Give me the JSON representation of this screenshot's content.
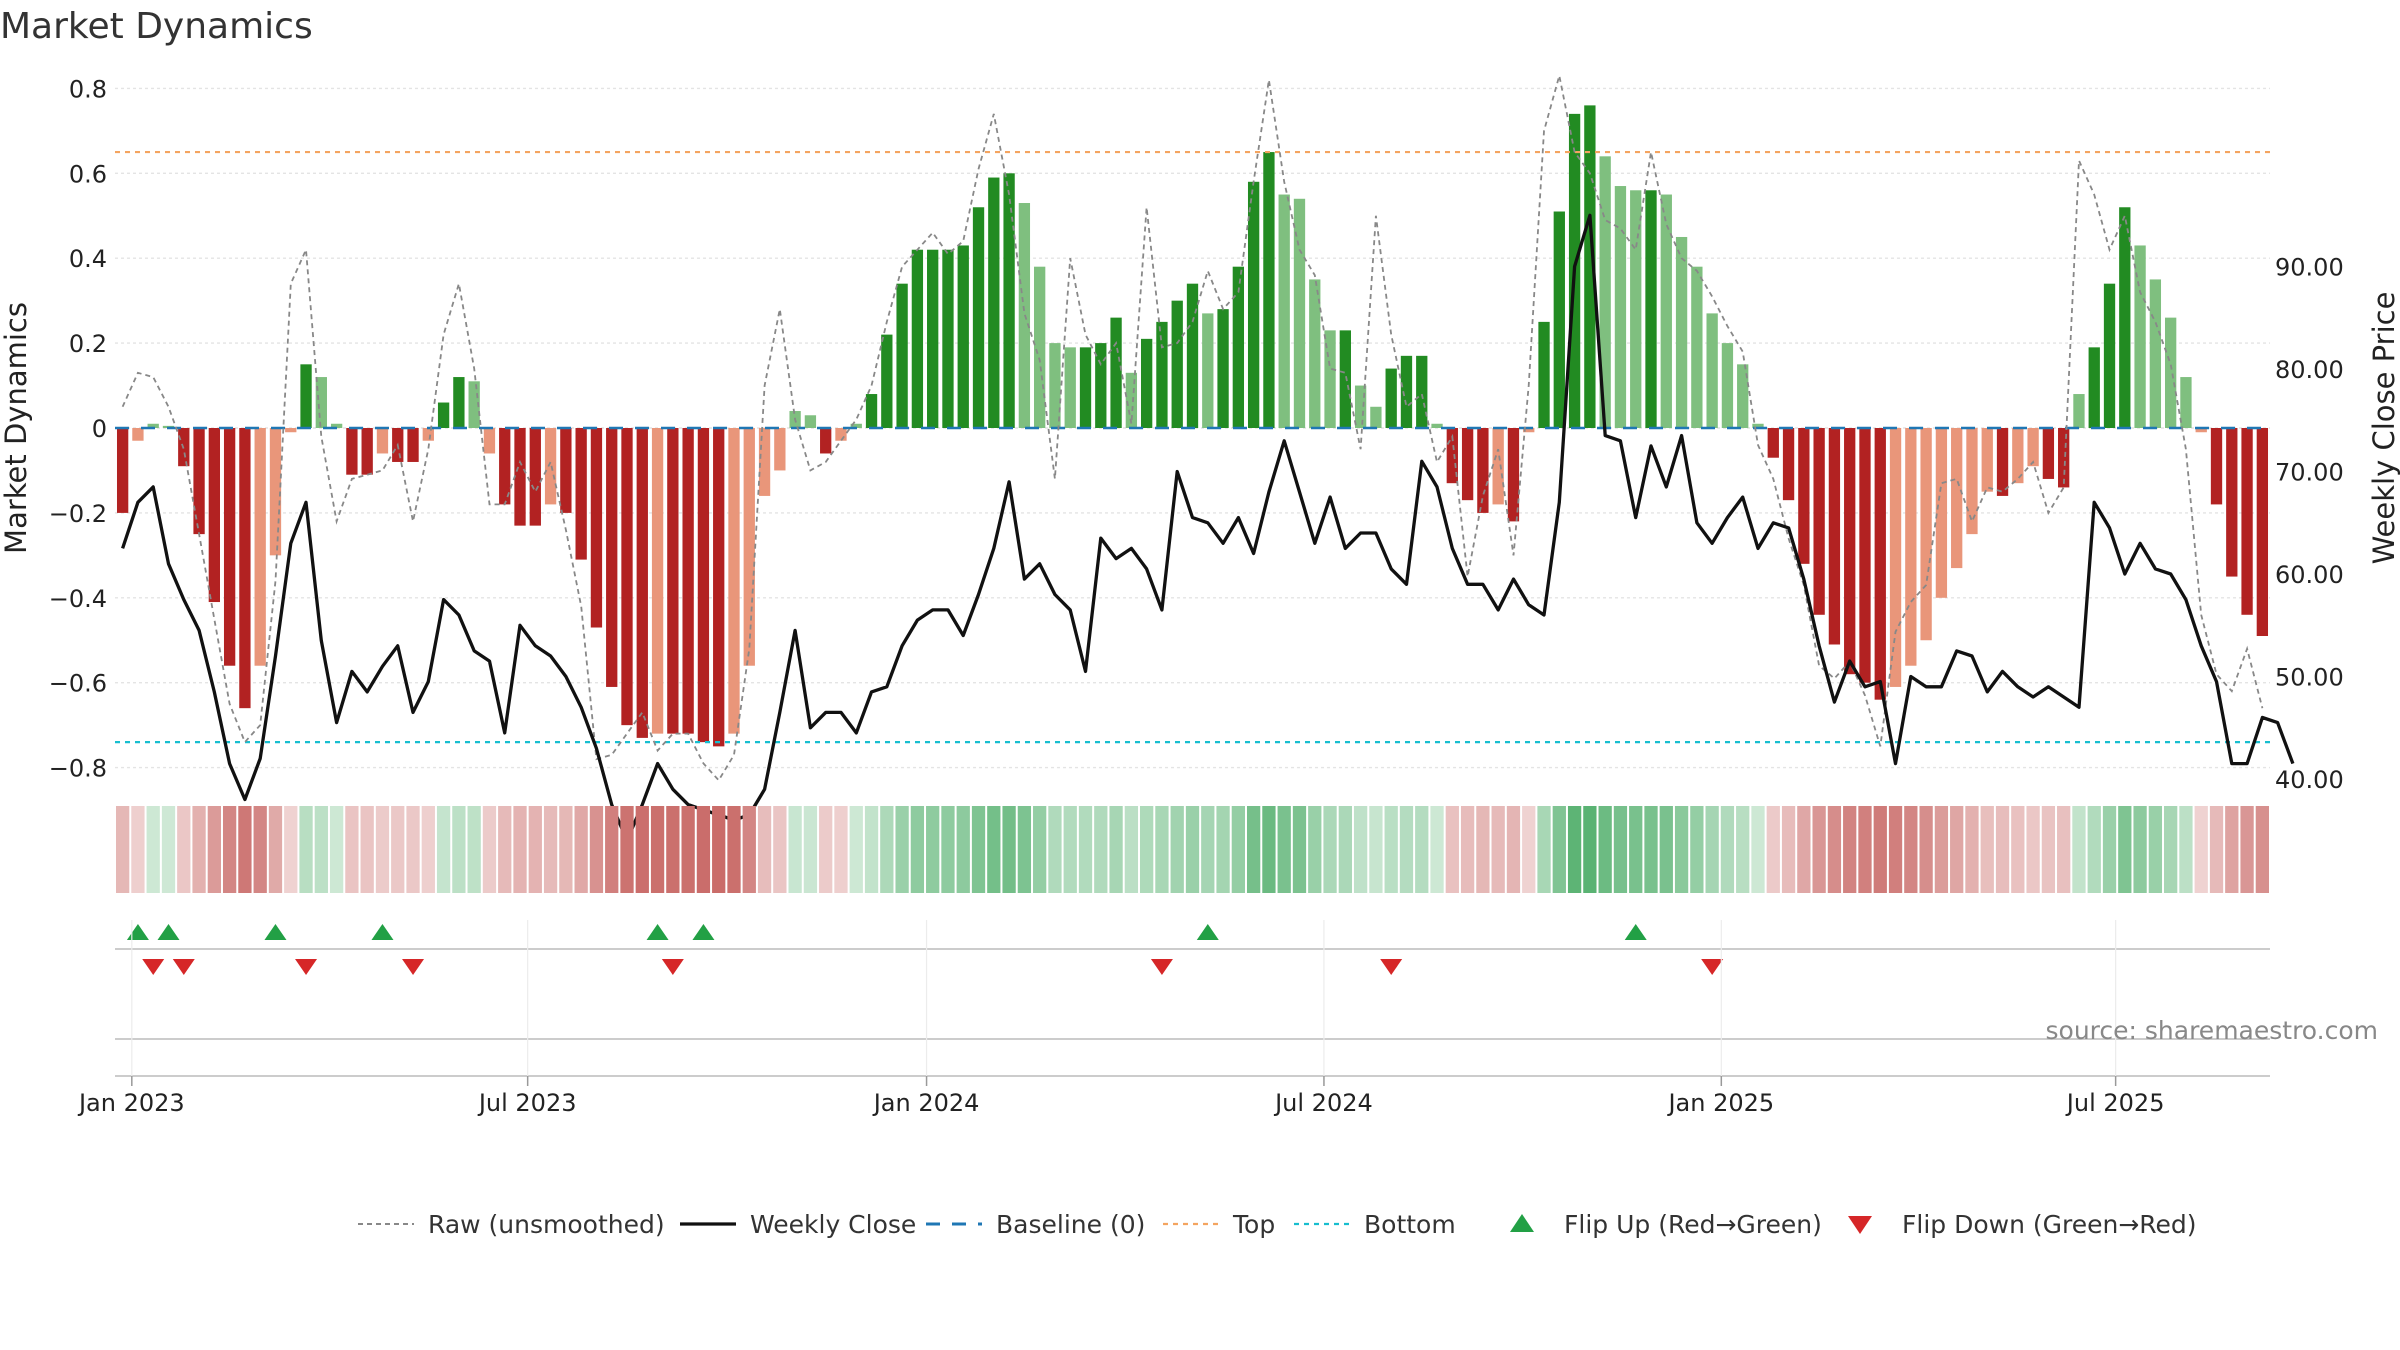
{
  "chart_data": {
    "type": "bar",
    "title": "Market Dynamics",
    "ylabel_left": "Market Dynamics",
    "ylabel_right": "Weekly Close Price",
    "ylim_left": [
      -0.84,
      0.82
    ],
    "ylim_right": [
      29.2,
      98.4
    ],
    "yticks_left": [
      "0.8",
      "0.6",
      "0.4",
      "0.2",
      "0",
      "−0.2",
      "−0.4",
      "−0.6",
      "−0.8"
    ],
    "yticks_right": [
      "90.00",
      "80.00",
      "70.00",
      "60.00",
      "50.00",
      "40.00"
    ],
    "xticks": [
      "Jan 2023",
      "Jul 2023",
      "Jan 2024",
      "Jul 2024",
      "Jan 2025",
      "Jul 2025"
    ],
    "top_line": 0.65,
    "bottom_line": -0.74,
    "grid": true,
    "legend_placement": "bottom",
    "source": "source: sharemaestro.com",
    "colors": {
      "strong_green": "#228b22",
      "light_green": "#7fbf7f",
      "strong_red": "#b22222",
      "light_red": "#e9967a",
      "weekly_close": "#111111",
      "raw": "#888888",
      "baseline": "#1f77b4",
      "top": "#f4a460",
      "bottom": "#17becf",
      "flip_up": "#22a045",
      "flip_down": "#d62728"
    },
    "legend": [
      {
        "key": "raw",
        "label": "Raw (unsmoothed)"
      },
      {
        "key": "weekly_close",
        "label": "Weekly Close"
      },
      {
        "key": "baseline",
        "label": "Baseline (0)"
      },
      {
        "key": "top",
        "label": "Top"
      },
      {
        "key": "bottom",
        "label": "Bottom"
      },
      {
        "key": "flip_up",
        "label": "Flip Up (Red→Green)"
      },
      {
        "key": "flip_down",
        "label": "Flip Down (Green→Red)"
      }
    ],
    "flip_up_weeks": [
      1,
      3,
      10,
      17,
      35,
      38,
      71,
      99
    ],
    "flip_down_weeks": [
      2,
      4,
      12,
      19,
      36,
      68,
      83,
      104
    ],
    "series": [
      {
        "name": "Market Dynamics",
        "values": [
          -0.2,
          -0.03,
          0.01,
          0.005,
          -0.09,
          -0.25,
          -0.41,
          -0.56,
          -0.66,
          -0.56,
          -0.3,
          -0.01,
          0.15,
          0.12,
          0.01,
          -0.11,
          -0.11,
          -0.06,
          -0.08,
          -0.08,
          -0.03,
          0.06,
          0.12,
          0.11,
          -0.06,
          -0.18,
          -0.23,
          -0.23,
          -0.18,
          -0.2,
          -0.31,
          -0.47,
          -0.61,
          -0.7,
          -0.73,
          -0.72,
          -0.72,
          -0.72,
          -0.74,
          -0.75,
          -0.72,
          -0.56,
          -0.16,
          -0.1,
          0.04,
          0.03,
          -0.06,
          -0.03,
          0.01,
          0.08,
          0.22,
          0.34,
          0.42,
          0.42,
          0.42,
          0.43,
          0.52,
          0.59,
          0.6,
          0.53,
          0.38,
          0.2,
          0.19,
          0.19,
          0.2,
          0.26,
          0.13,
          0.21,
          0.25,
          0.3,
          0.34,
          0.27,
          0.28,
          0.38,
          0.58,
          0.65,
          0.55,
          0.54,
          0.35,
          0.23,
          0.23,
          0.1,
          0.05,
          0.14,
          0.17,
          0.17,
          0.01,
          -0.13,
          -0.17,
          -0.2,
          -0.18,
          -0.22,
          -0.01,
          0.25,
          0.51,
          0.74,
          0.76,
          0.64,
          0.57,
          0.56,
          0.56,
          0.55,
          0.45,
          0.38,
          0.27,
          0.2,
          0.15,
          0.01,
          -0.07,
          -0.17,
          -0.32,
          -0.44,
          -0.51,
          -0.58,
          -0.6,
          -0.64,
          -0.61,
          -0.56,
          -0.5,
          -0.4,
          -0.33,
          -0.25,
          -0.15,
          -0.16,
          -0.13,
          -0.09,
          -0.12,
          -0.14,
          0.08,
          0.19,
          0.34,
          0.52,
          0.43,
          0.35,
          0.26,
          0.12,
          -0.01,
          -0.18,
          -0.35,
          -0.44,
          -0.49
        ]
      },
      {
        "name": "Weekly Close",
        "values": [
          62.5,
          67.0,
          68.5,
          61.0,
          57.5,
          54.5,
          48.5,
          41.5,
          38.0,
          42.0,
          52.0,
          63.0,
          67.0,
          53.5,
          45.5,
          50.5,
          48.5,
          51.0,
          53.0,
          46.5,
          49.5,
          57.5,
          56.0,
          52.5,
          51.5,
          44.5,
          55.0,
          53.0,
          52.0,
          50.0,
          47.0,
          43.0,
          37.5,
          34.0,
          37.5,
          41.5,
          39.0,
          37.5,
          37.0,
          36.5,
          36.0,
          36.5,
          39.0,
          46.5,
          54.5,
          45.0,
          46.5,
          46.5,
          44.5,
          48.5,
          49.0,
          53.0,
          55.5,
          56.5,
          56.5,
          54.0,
          58.0,
          62.5,
          69.0,
          59.5,
          61.0,
          58.0,
          56.5,
          50.5,
          63.5,
          61.5,
          62.5,
          60.5,
          56.5,
          70.0,
          65.5,
          65.0,
          63.0,
          65.5,
          62.0,
          68.0,
          73.0,
          68.0,
          63.0,
          67.5,
          62.5,
          64.0,
          64.0,
          60.5,
          59.0,
          71.0,
          68.5,
          62.5,
          59.0,
          59.0,
          56.5,
          59.5,
          57.0,
          56.0,
          67.0,
          90.0,
          95.0,
          73.5,
          73.0,
          65.5,
          72.5,
          68.5,
          73.5,
          65.0,
          63.0,
          65.5,
          67.5,
          62.5,
          65.0,
          64.5,
          59.5,
          53.0,
          47.5,
          51.5,
          49.0,
          49.5,
          41.5,
          50.0,
          49.0,
          49.0,
          52.5,
          52.0,
          48.5,
          50.5,
          49.0,
          48.0,
          49.0,
          48.0,
          47.0,
          67.0,
          64.5,
          60.0,
          63.0,
          60.5,
          60.0,
          57.5,
          53.0,
          49.5,
          41.5,
          41.5,
          46.0,
          45.5,
          41.5
        ]
      },
      {
        "name": "Raw (unsmoothed)",
        "values": [
          0.05,
          0.13,
          0.12,
          0.05,
          -0.05,
          -0.25,
          -0.45,
          -0.65,
          -0.74,
          -0.7,
          -0.36,
          0.34,
          0.42,
          -0.02,
          -0.22,
          -0.12,
          -0.11,
          -0.1,
          -0.04,
          -0.22,
          -0.05,
          0.22,
          0.34,
          0.14,
          -0.18,
          -0.18,
          -0.08,
          -0.15,
          -0.08,
          -0.24,
          -0.42,
          -0.78,
          -0.77,
          -0.72,
          -0.67,
          -0.76,
          -0.72,
          -0.72,
          -0.79,
          -0.83,
          -0.77,
          -0.52,
          0.1,
          0.28,
          0.02,
          -0.1,
          -0.08,
          -0.03,
          0.02,
          0.1,
          0.25,
          0.38,
          0.42,
          0.46,
          0.41,
          0.44,
          0.61,
          0.74,
          0.55,
          0.27,
          0.16,
          -0.12,
          0.4,
          0.22,
          0.15,
          0.2,
          0.01,
          0.52,
          0.19,
          0.2,
          0.25,
          0.37,
          0.28,
          0.32,
          0.58,
          0.82,
          0.58,
          0.42,
          0.36,
          0.14,
          0.13,
          -0.05,
          0.5,
          0.22,
          0.05,
          0.08,
          -0.08,
          -0.02,
          -0.35,
          -0.16,
          -0.05,
          -0.3,
          0.1,
          0.7,
          0.83,
          0.65,
          0.6,
          0.49,
          0.47,
          0.42,
          0.65,
          0.48,
          0.4,
          0.37,
          0.31,
          0.24,
          0.18,
          -0.04,
          -0.12,
          -0.26,
          -0.37,
          -0.56,
          -0.59,
          -0.55,
          -0.63,
          -0.75,
          -0.48,
          -0.41,
          -0.37,
          -0.13,
          -0.12,
          -0.22,
          -0.14,
          -0.15,
          -0.12,
          -0.08,
          -0.2,
          -0.14,
          0.63,
          0.55,
          0.42,
          0.5,
          0.32,
          0.25,
          0.15,
          -0.05,
          -0.44,
          -0.58,
          -0.62,
          -0.52,
          -0.66
        ]
      }
    ]
  }
}
